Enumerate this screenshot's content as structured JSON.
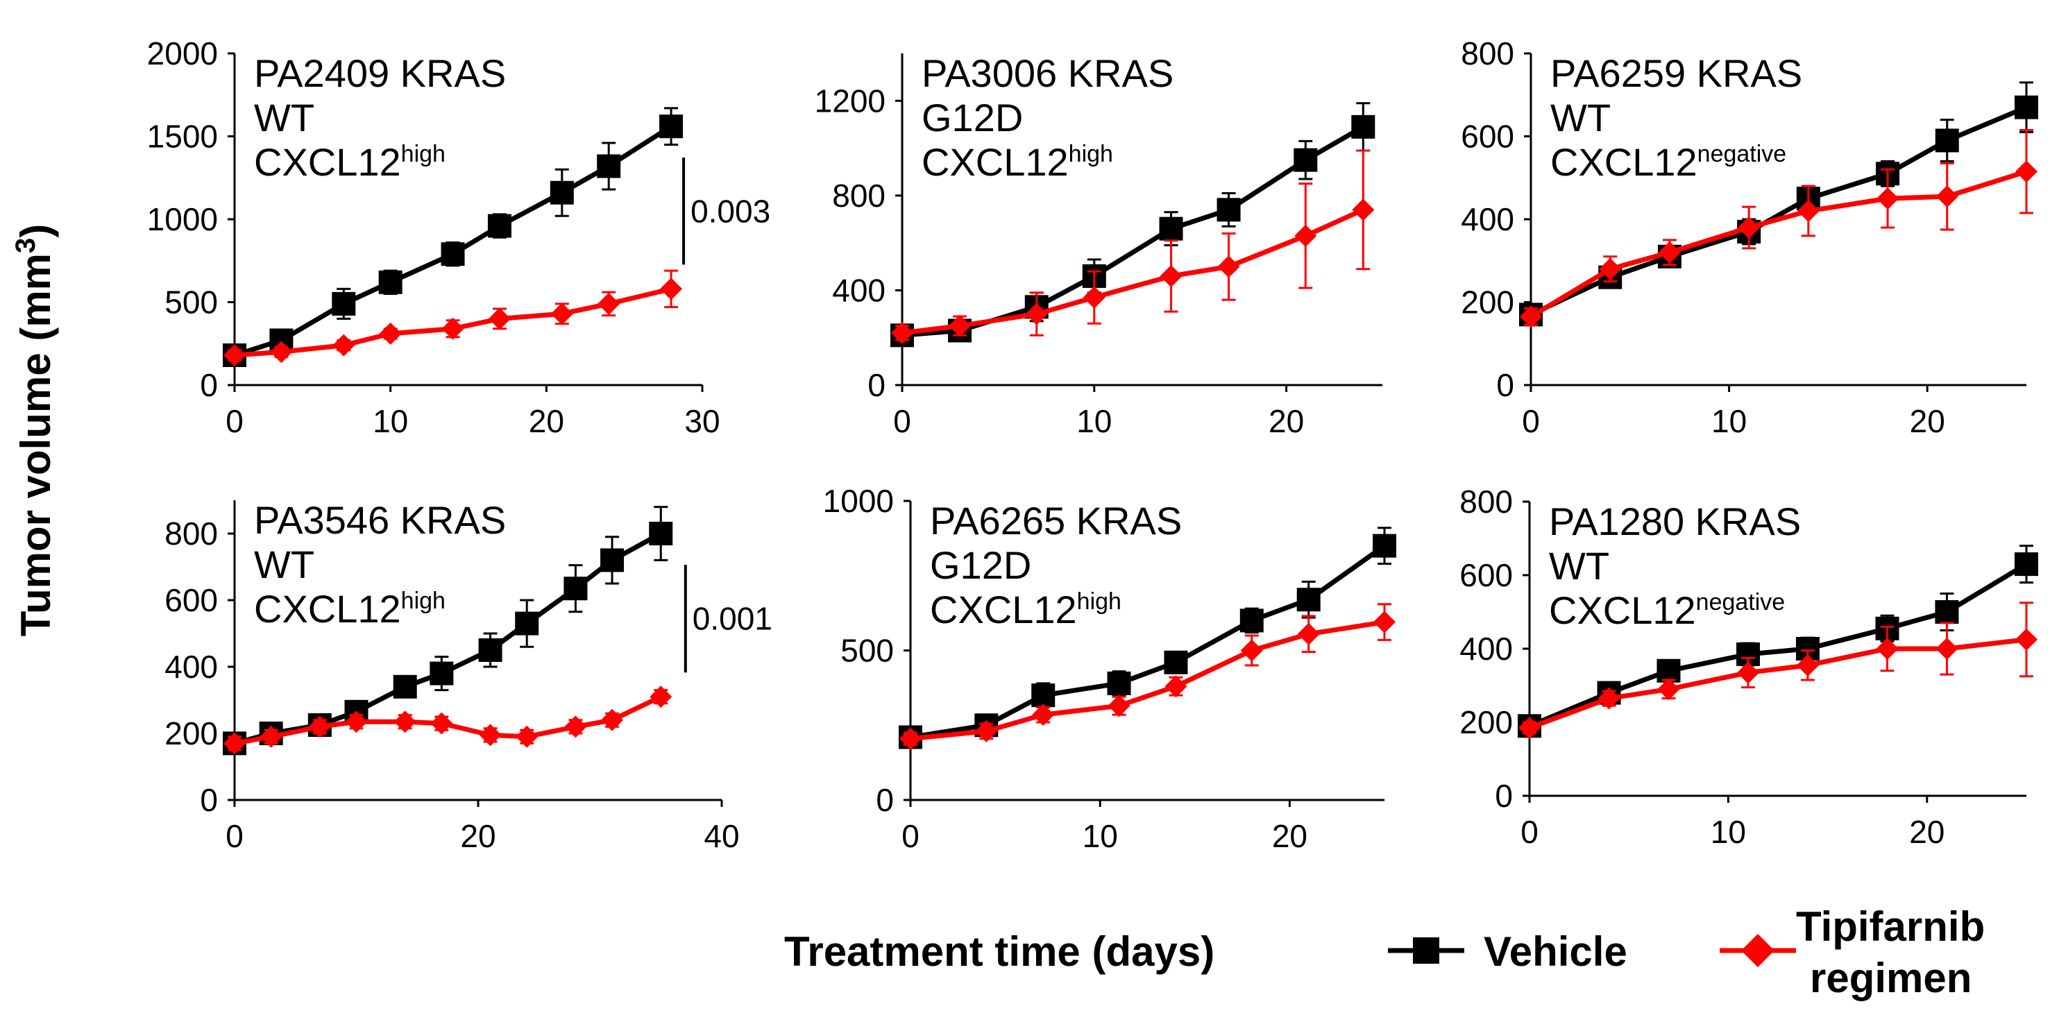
{
  "figure": {
    "y_axis_title": "Tumor volume (mm",
    "y_axis_title_sup": "3",
    "y_axis_title_end": ")",
    "x_axis_title": "Treatment time (days)",
    "legend": {
      "vehicle_label": "Vehicle",
      "tipifarnib_label_line1": "Tipifarnib",
      "tipifarnib_label_line2": "regimen",
      "vehicle_color": "#000000",
      "tipifarnib_color": "#ff0000"
    }
  },
  "chart_data": [
    {
      "type": "line",
      "id": "pa2409",
      "label_line1": "PA2409 KRAS",
      "label_line2": "WT",
      "label_line3_base": "CXCL12",
      "label_line3_sup": "high",
      "xlim": [
        0,
        30
      ],
      "ylim": [
        0,
        2000
      ],
      "xticks": [
        0,
        10,
        20,
        30
      ],
      "yticks": [
        0,
        500,
        1000,
        1500,
        2000
      ],
      "pvalue": "0.003",
      "pvalue_x": 28,
      "series": [
        {
          "name": "Vehicle",
          "x": [
            0,
            3,
            7,
            10,
            14,
            17,
            21,
            24,
            28
          ],
          "values": [
            180,
            270,
            490,
            620,
            790,
            960,
            1160,
            1320,
            1560
          ],
          "errors": [
            30,
            40,
            90,
            70,
            70,
            70,
            140,
            140,
            110
          ]
        },
        {
          "name": "Tipifarnib regimen",
          "x": [
            0,
            3,
            7,
            10,
            14,
            17,
            21,
            24,
            28
          ],
          "values": [
            180,
            200,
            240,
            310,
            340,
            400,
            430,
            490,
            580
          ],
          "errors": [
            30,
            30,
            30,
            30,
            50,
            60,
            60,
            70,
            110
          ]
        }
      ]
    },
    {
      "type": "line",
      "id": "pa3006",
      "label_line1": "PA3006 KRAS",
      "label_line2": "G12D",
      "label_line3_base": "CXCL12",
      "label_line3_sup": "high",
      "xlim": [
        0,
        25
      ],
      "ylim": [
        0,
        1400
      ],
      "xticks": [
        0,
        10,
        20
      ],
      "yticks": [
        0,
        400,
        800,
        1200
      ],
      "pvalue": "",
      "pvalue_x": null,
      "series": [
        {
          "name": "Vehicle",
          "x": [
            0,
            3,
            7,
            10,
            14,
            17,
            21,
            24
          ],
          "values": [
            210,
            230,
            330,
            460,
            660,
            740,
            950,
            1090
          ],
          "errors": [
            40,
            40,
            60,
            70,
            70,
            70,
            80,
            100
          ]
        },
        {
          "name": "Tipifarnib regimen",
          "x": [
            0,
            3,
            7,
            10,
            14,
            17,
            21,
            24
          ],
          "values": [
            220,
            250,
            300,
            370,
            460,
            500,
            630,
            740
          ],
          "errors": [
            30,
            40,
            90,
            110,
            150,
            140,
            220,
            250
          ]
        }
      ]
    },
    {
      "type": "line",
      "id": "pa6259",
      "label_line1": "PA6259 KRAS",
      "label_line2": "WT",
      "label_line3_base": "CXCL12",
      "label_line3_sup": "negative",
      "xlim": [
        0,
        25
      ],
      "ylim": [
        0,
        800
      ],
      "xticks": [
        0,
        10,
        20
      ],
      "yticks": [
        0,
        200,
        400,
        600,
        800
      ],
      "pvalue": "",
      "pvalue_x": null,
      "series": [
        {
          "name": "Vehicle",
          "x": [
            0,
            4,
            7,
            11,
            14,
            18,
            21,
            25
          ],
          "values": [
            170,
            260,
            310,
            370,
            450,
            510,
            590,
            670
          ],
          "errors": [
            20,
            25,
            25,
            30,
            30,
            30,
            50,
            60
          ]
        },
        {
          "name": "Tipifarnib regimen",
          "x": [
            0,
            4,
            7,
            11,
            14,
            18,
            21,
            25
          ],
          "values": [
            165,
            280,
            320,
            380,
            420,
            450,
            455,
            515
          ],
          "errors": [
            20,
            30,
            30,
            50,
            60,
            70,
            80,
            100
          ]
        }
      ]
    },
    {
      "type": "line",
      "id": "pa3546",
      "label_line1": "PA3546 KRAS",
      "label_line2": "WT",
      "label_line3_base": "CXCL12",
      "label_line3_sup": "high",
      "xlim": [
        0,
        40
      ],
      "ylim": [
        0,
        900
      ],
      "xticks": [
        0,
        20,
        40
      ],
      "yticks": [
        0,
        200,
        400,
        600,
        800
      ],
      "pvalue": "0.001",
      "pvalue_x": 36,
      "series": [
        {
          "name": "Vehicle",
          "x": [
            0,
            3,
            7,
            10,
            14,
            17,
            21,
            24,
            28,
            31,
            35
          ],
          "values": [
            170,
            200,
            225,
            265,
            340,
            380,
            450,
            530,
            635,
            720,
            800
          ],
          "errors": [
            20,
            20,
            20,
            25,
            25,
            50,
            50,
            70,
            70,
            70,
            80
          ]
        },
        {
          "name": "Tipifarnib regimen",
          "x": [
            0,
            3,
            7,
            10,
            14,
            17,
            21,
            24,
            28,
            31,
            35
          ],
          "values": [
            170,
            190,
            220,
            235,
            235,
            230,
            195,
            190,
            220,
            240,
            310
          ],
          "errors": [
            20,
            20,
            20,
            20,
            20,
            20,
            20,
            20,
            20,
            20,
            20
          ]
        }
      ]
    },
    {
      "type": "line",
      "id": "pa6265",
      "label_line1": "PA6265 KRAS",
      "label_line2": "G12D",
      "label_line3_base": "CXCL12",
      "label_line3_sup": "high",
      "xlim": [
        0,
        25
      ],
      "ylim": [
        0,
        1000
      ],
      "xticks": [
        0,
        10,
        20
      ],
      "yticks": [
        0,
        500,
        1000
      ],
      "pvalue": "",
      "pvalue_x": null,
      "series": [
        {
          "name": "Vehicle",
          "x": [
            0,
            4,
            7,
            11,
            14,
            18,
            21,
            25
          ],
          "values": [
            210,
            250,
            350,
            390,
            460,
            600,
            670,
            850
          ],
          "errors": [
            20,
            25,
            40,
            40,
            30,
            40,
            60,
            60
          ]
        },
        {
          "name": "Tipifarnib regimen",
          "x": [
            0,
            4,
            7,
            11,
            14,
            18,
            21,
            25
          ],
          "values": [
            205,
            230,
            285,
            315,
            380,
            500,
            555,
            595
          ],
          "errors": [
            20,
            25,
            25,
            30,
            30,
            50,
            60,
            60
          ]
        }
      ]
    },
    {
      "type": "line",
      "id": "pa1280",
      "label_line1": "PA1280 KRAS",
      "label_line2": "WT",
      "label_line3_base": "CXCL12",
      "label_line3_sup": "negative",
      "xlim": [
        0,
        25
      ],
      "ylim": [
        0,
        800
      ],
      "xticks": [
        0,
        10,
        20
      ],
      "yticks": [
        0,
        200,
        400,
        600,
        800
      ],
      "pvalue": "",
      "pvalue_x": null,
      "series": [
        {
          "name": "Vehicle",
          "x": [
            0,
            4,
            7,
            11,
            14,
            18,
            21,
            25
          ],
          "values": [
            190,
            280,
            340,
            385,
            400,
            455,
            500,
            630
          ],
          "errors": [
            15,
            20,
            25,
            30,
            30,
            35,
            50,
            50
          ]
        },
        {
          "name": "Tipifarnib regimen",
          "x": [
            0,
            4,
            7,
            11,
            14,
            18,
            21,
            25
          ],
          "values": [
            185,
            265,
            290,
            335,
            355,
            400,
            400,
            425
          ],
          "errors": [
            15,
            20,
            25,
            40,
            40,
            60,
            70,
            100
          ]
        }
      ]
    }
  ]
}
